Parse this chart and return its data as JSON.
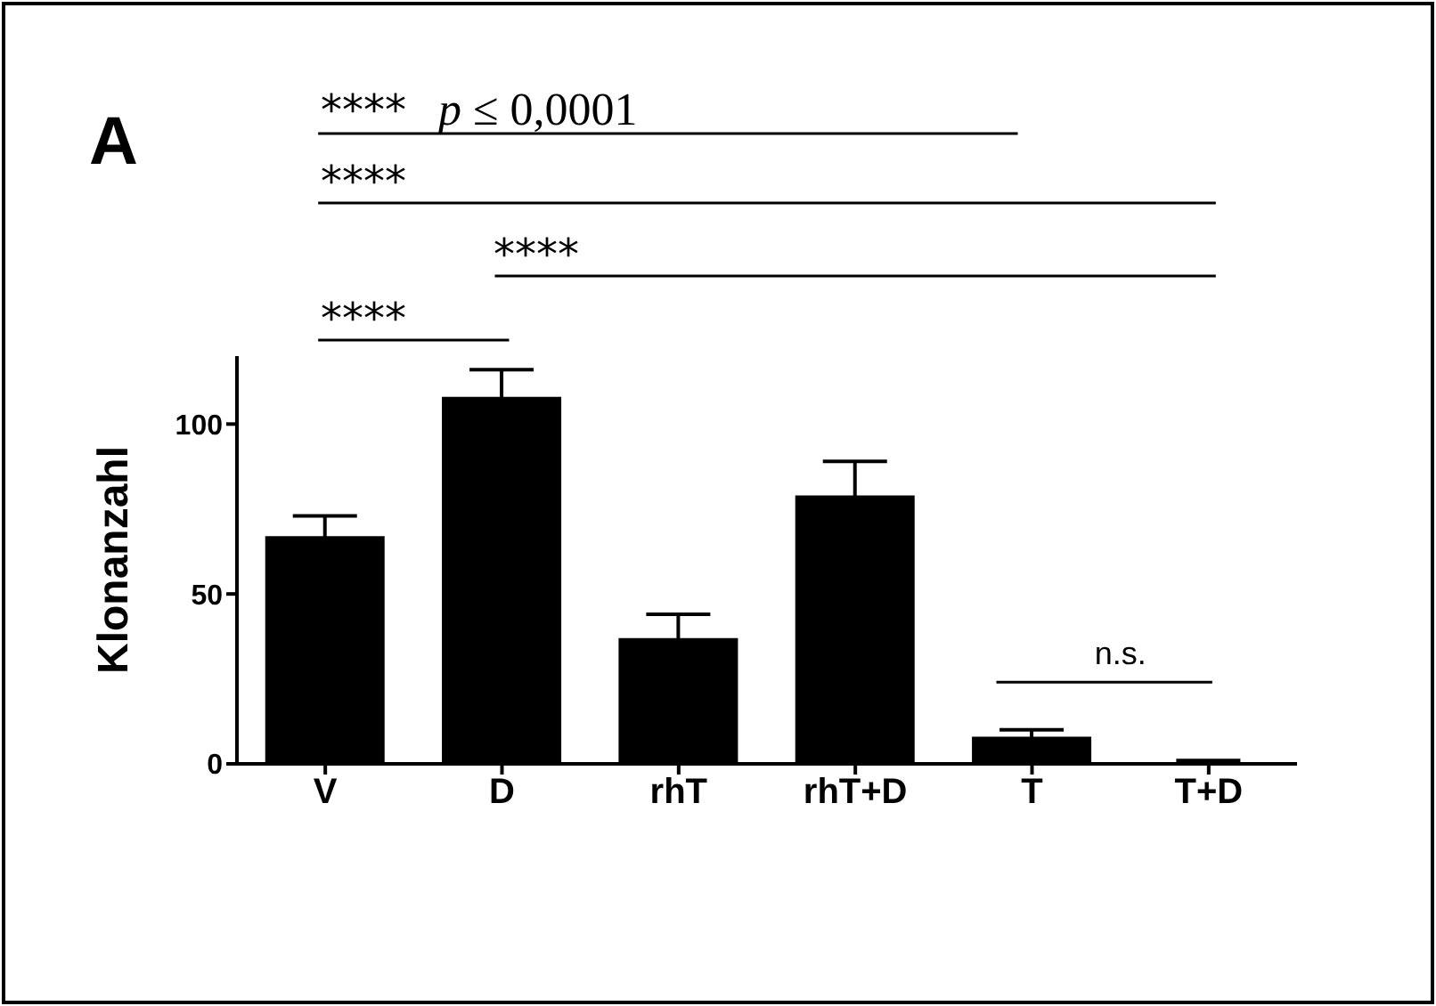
{
  "chart_data": {
    "type": "bar",
    "ylabel": "Klonanzahl",
    "categories": [
      "V",
      "D",
      "rhT",
      "rhT+D",
      "T",
      "T+D"
    ],
    "values": [
      67,
      108,
      37,
      79,
      8,
      0.5
    ],
    "errors": [
      6,
      8,
      7,
      10,
      2,
      0.5
    ],
    "color": "#000000",
    "ylim": [
      0,
      120
    ],
    "yticks": [
      0,
      50,
      100
    ],
    "grid": false,
    "legend": false,
    "annotations": [
      "A",
      "****",
      "p ≤ 0,0001",
      "****",
      "****",
      "****",
      "n.s."
    ]
  }
}
